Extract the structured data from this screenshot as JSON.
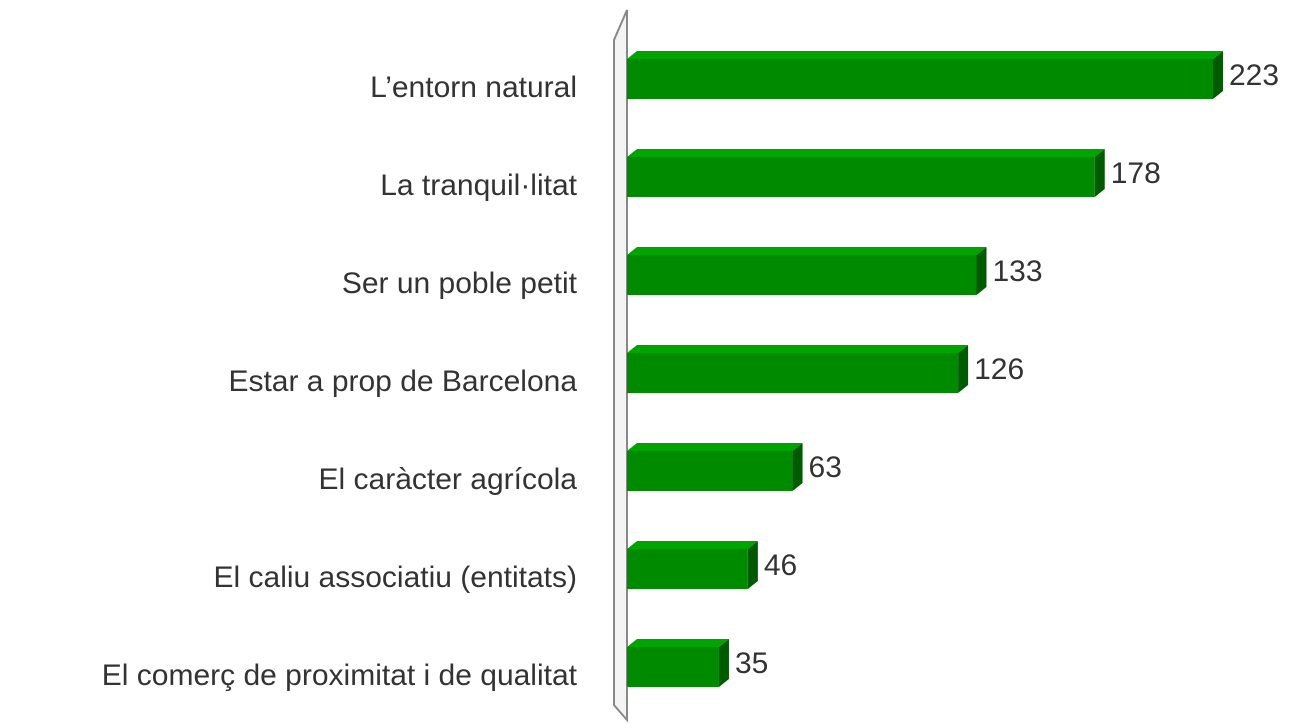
{
  "chart_data": {
    "type": "bar",
    "orientation": "horizontal",
    "categories": [
      "L’entorn natural",
      "La tranquil·litat",
      "Ser un poble petit",
      "Estar a prop de Barcelona",
      "El caràcter agrícola",
      "El caliu associatiu (entitats)",
      "El comerç de proximitat i de qualitat"
    ],
    "values": [
      223,
      178,
      133,
      126,
      63,
      46,
      35
    ],
    "color": "#008a00"
  }
}
